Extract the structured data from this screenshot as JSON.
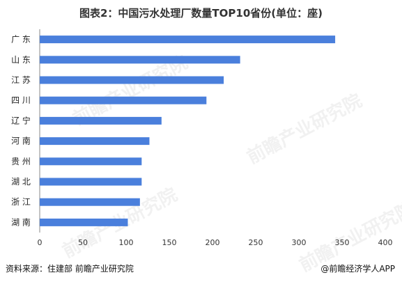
{
  "title": "图表2：中国污水处理厂数量TOP10省份(单位：座)",
  "source": "资料来源：住建部 前瞻产业研究院",
  "credit": "@前瞻经济学人APP",
  "watermark": "前瞻产业研究院",
  "chart_data": {
    "type": "bar",
    "orientation": "horizontal",
    "title": "图表2：中国污水处理厂数量TOP10省份(单位：座)",
    "xlabel": "",
    "ylabel": "",
    "categories": [
      "广 东",
      "山 东",
      "江 苏",
      "四 川",
      "辽 宁",
      "河 南",
      "贵 州",
      "湖 北",
      "浙 江",
      "湖 南"
    ],
    "values": [
      342,
      232,
      213,
      193,
      141,
      127,
      118,
      118,
      116,
      102
    ],
    "xlim": [
      0,
      400
    ],
    "xticks": [
      0,
      50,
      100,
      150,
      200,
      250,
      300,
      350,
      400
    ],
    "grid": false,
    "bar_color": "#4a7fdc"
  }
}
